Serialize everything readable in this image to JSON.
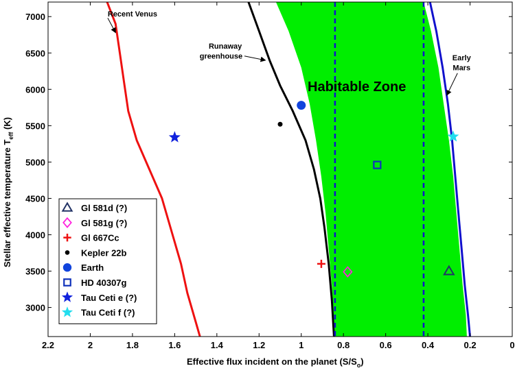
{
  "chart_data": {
    "type": "line",
    "title": "",
    "xlabel": "Effective flux incident on the planet (S/S",
    "xlabel_sub": "o",
    "xlabel_end": ")",
    "ylabel": "Stellar effective temperature T",
    "ylabel_sub": "eff",
    "ylabel_end": " (K)",
    "xlim": [
      2.2,
      0
    ],
    "ylim": [
      2600,
      7200
    ],
    "x_ticks": [
      2.2,
      2,
      1.8,
      1.6,
      1.4,
      1.2,
      1,
      0.8,
      0.6,
      0.4,
      0.2,
      0
    ],
    "x_tick_labels": [
      "2.2",
      "2",
      "1.8",
      "1.6",
      "1.4",
      "1.2",
      "1",
      "0.8",
      "0.6",
      "0.4",
      "0.2",
      "0"
    ],
    "y_ticks": [
      3000,
      3500,
      4000,
      4500,
      5000,
      5500,
      6000,
      6500,
      7000
    ],
    "y_tick_labels": [
      "3000",
      "3500",
      "4000",
      "4500",
      "5000",
      "5500",
      "6000",
      "6500",
      "7000"
    ],
    "hz_label": "Habitable Zone",
    "zone_color": "#00ee00",
    "curves": [
      {
        "name": "Recent Venus",
        "color": "#ee1111",
        "points": [
          [
            1.92,
            7200
          ],
          [
            1.88,
            6900
          ],
          [
            1.86,
            6500
          ],
          [
            1.84,
            6100
          ],
          [
            1.82,
            5700
          ],
          [
            1.78,
            5300
          ],
          [
            1.72,
            4900
          ],
          [
            1.66,
            4500
          ],
          [
            1.61,
            4000
          ],
          [
            1.57,
            3600
          ],
          [
            1.54,
            3200
          ],
          [
            1.5,
            2800
          ],
          [
            1.48,
            2600
          ]
        ]
      },
      {
        "name": "Runaway greenhouse",
        "color": "#000000",
        "points": [
          [
            1.25,
            7200
          ],
          [
            1.2,
            6800
          ],
          [
            1.15,
            6400
          ],
          [
            1.1,
            6050
          ],
          [
            1.04,
            5700
          ],
          [
            0.98,
            5300
          ],
          [
            0.94,
            4900
          ],
          [
            0.91,
            4500
          ],
          [
            0.89,
            4100
          ],
          [
            0.87,
            3600
          ],
          [
            0.855,
            3100
          ],
          [
            0.845,
            2600
          ]
        ]
      },
      {
        "name": "Early Mars",
        "color": "#1111cc",
        "points": [
          [
            0.39,
            7200
          ],
          [
            0.36,
            6800
          ],
          [
            0.33,
            6300
          ],
          [
            0.305,
            5800
          ],
          [
            0.285,
            5300
          ],
          [
            0.27,
            4800
          ],
          [
            0.255,
            4300
          ],
          [
            0.24,
            3800
          ],
          [
            0.225,
            3300
          ],
          [
            0.21,
            2900
          ],
          [
            0.2,
            2600
          ]
        ]
      }
    ],
    "zone_inner": [
      [
        1.12,
        7200
      ],
      [
        1.06,
        6800
      ],
      [
        1.0,
        6300
      ],
      [
        0.96,
        5800
      ],
      [
        0.93,
        5300
      ],
      [
        0.905,
        4800
      ],
      [
        0.885,
        4300
      ],
      [
        0.87,
        3800
      ],
      [
        0.855,
        3300
      ],
      [
        0.84,
        2600
      ]
    ],
    "zone_outer": [
      [
        0.42,
        7200
      ],
      [
        0.385,
        6800
      ],
      [
        0.35,
        6300
      ],
      [
        0.325,
        5800
      ],
      [
        0.3,
        5300
      ],
      [
        0.28,
        4800
      ],
      [
        0.265,
        4300
      ],
      [
        0.25,
        3800
      ],
      [
        0.235,
        3300
      ],
      [
        0.22,
        2900
      ],
      [
        0.215,
        2600
      ]
    ],
    "vlines": [
      {
        "x": 0.84,
        "color": "#1111cc"
      },
      {
        "x": 0.42,
        "color": "#1111cc"
      }
    ],
    "annotations": [
      {
        "text": "Recent Venus",
        "x": 1.8,
        "y": 7000,
        "arrow_to": [
          1.88,
          6780
        ]
      },
      {
        "text": "Runaway",
        "x": 1.36,
        "y": 6560,
        "arrow_to": null
      },
      {
        "text": "greenhouse",
        "x": 1.38,
        "y": 6420,
        "arrow_to": [
          1.17,
          6400
        ]
      },
      {
        "text": "Early",
        "x": 0.24,
        "y": 6400,
        "arrow_to": null
      },
      {
        "text": "Mars",
        "x": 0.24,
        "y": 6260,
        "arrow_to": [
          0.31,
          5920
        ]
      }
    ],
    "planets": [
      {
        "name": "Gl 581d (?)",
        "marker": "triangle",
        "color": "#223366",
        "x": 0.3,
        "y": 3500
      },
      {
        "name": "Gl 581g (?)",
        "marker": "diamond",
        "color": "#ff22dd",
        "x": 0.78,
        "y": 3490
      },
      {
        "name": "Gl 667Cc",
        "marker": "plus",
        "color": "#ee1111",
        "x": 0.905,
        "y": 3600
      },
      {
        "name": "Kepler 22b",
        "marker": "dot",
        "color": "#000000",
        "x": 1.1,
        "y": 5520
      },
      {
        "name": "Earth",
        "marker": "circle",
        "color": "#1144dd",
        "x": 1.0,
        "y": 5780
      },
      {
        "name": "HD 40307g",
        "marker": "square",
        "color": "#1133bb",
        "x": 0.64,
        "y": 4960
      },
      {
        "name": "Tau Ceti e (?)",
        "marker": "star",
        "color": "#1122dd",
        "x": 1.6,
        "y": 5340
      },
      {
        "name": "Tau Ceti f (?)",
        "marker": "star",
        "color": "#22ddee",
        "x": 0.28,
        "y": 5350
      }
    ]
  }
}
